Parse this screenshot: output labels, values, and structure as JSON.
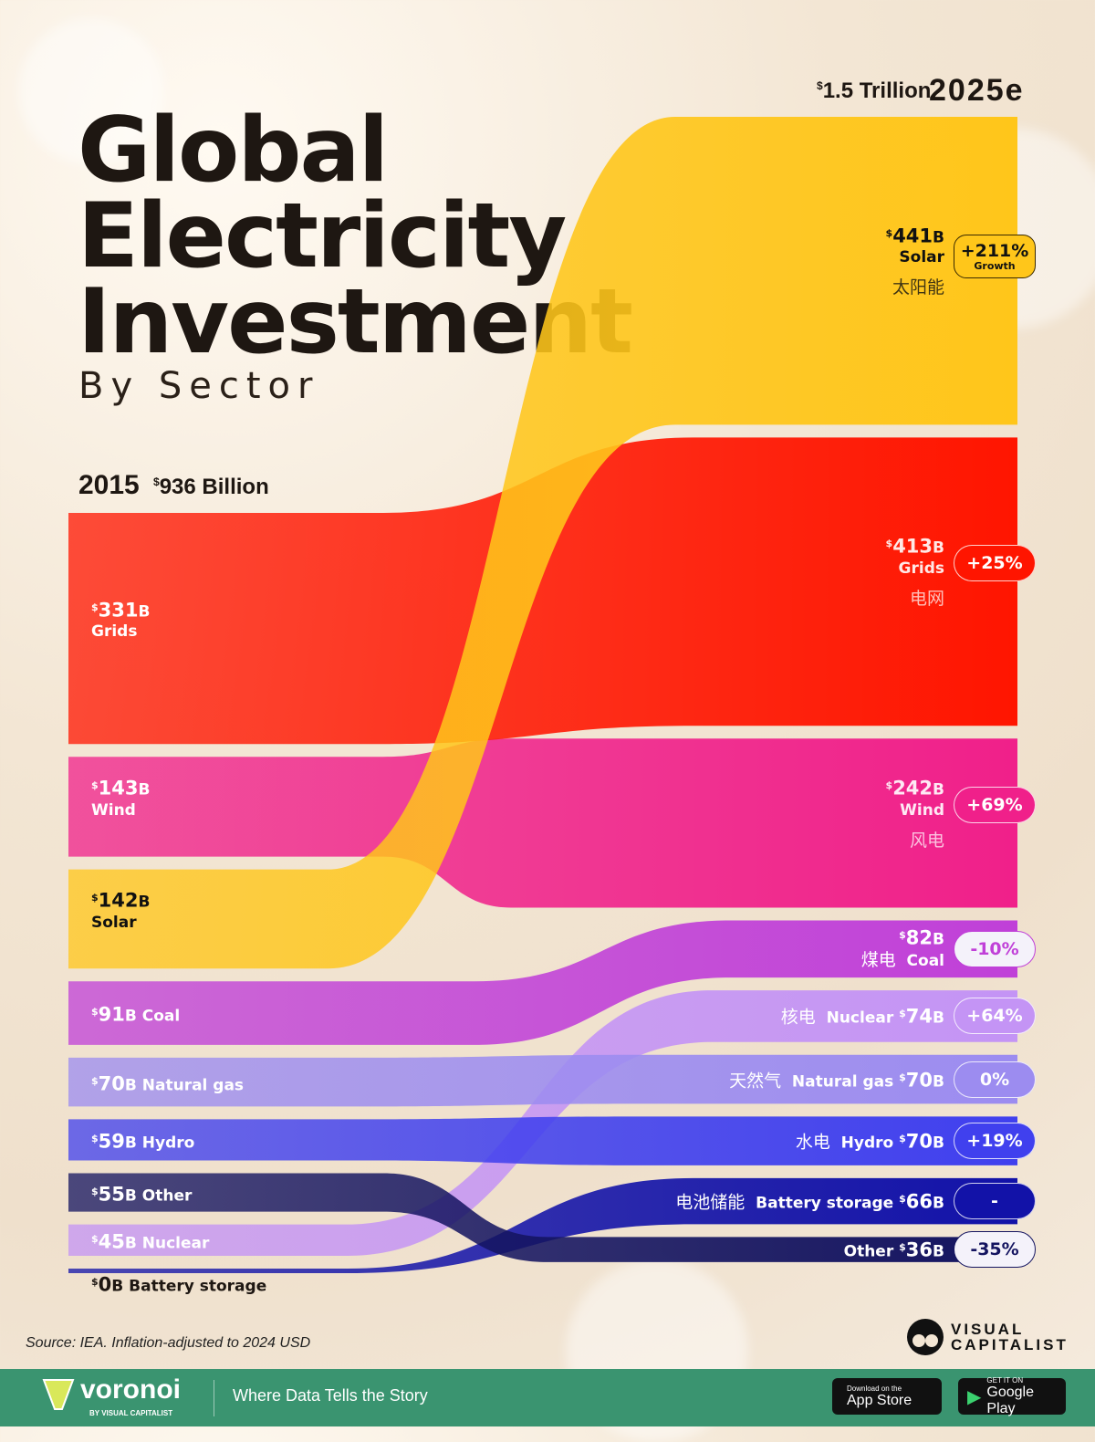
{
  "title_lines": [
    "Global",
    "Electricity",
    "Investment"
  ],
  "subtitle": "By Sector",
  "left_header": {
    "year": "2015",
    "total": "936 Billion",
    "currency": "$"
  },
  "right_header": {
    "year": "2025e",
    "total": "1.5 Trillion",
    "currency": "$"
  },
  "growth_word": "Growth",
  "chart_data": {
    "type": "sankey",
    "title": "Global Electricity Investment By Sector",
    "unit": "Billion USD",
    "x": [
      "2015",
      "2025e"
    ],
    "series": [
      {
        "name": "Grids",
        "cn": "电网",
        "v2015": 331,
        "v2025": 413,
        "change": "+25%",
        "color": "#ff1500"
      },
      {
        "name": "Wind",
        "cn": "风电",
        "v2015": 143,
        "v2025": 242,
        "change": "+69%",
        "color": "#f0208a"
      },
      {
        "name": "Solar",
        "cn": "太阳能",
        "v2015": 142,
        "v2025": 441,
        "change": "+211%",
        "color": "#ffc61a"
      },
      {
        "name": "Coal",
        "cn": "煤电",
        "v2015": 91,
        "v2025": 82,
        "change": "-10%",
        "color": "#c040d8"
      },
      {
        "name": "Natural gas",
        "cn": "天然气",
        "v2015": 70,
        "v2025": 70,
        "change": "0%",
        "color": "#9c8cf0"
      },
      {
        "name": "Hydro",
        "cn": "水电",
        "v2015": 59,
        "v2025": 70,
        "change": "+19%",
        "color": "#4040ee"
      },
      {
        "name": "Other",
        "cn": "",
        "v2015": 55,
        "v2025": 36,
        "change": "-35%",
        "color": "#141460"
      },
      {
        "name": "Nuclear",
        "cn": "核电",
        "v2015": 45,
        "v2025": 74,
        "change": "+64%",
        "color": "#c494f5"
      },
      {
        "name": "Battery storage",
        "cn": "电池储能",
        "v2015": 0,
        "v2025": 66,
        "change": "-",
        "color": "#1212a8"
      }
    ],
    "order_2015": [
      "Grids",
      "Wind",
      "Solar",
      "Coal",
      "Natural gas",
      "Hydro",
      "Other",
      "Nuclear",
      "Battery storage"
    ],
    "order_2025": [
      "Solar",
      "Grids",
      "Wind",
      "Coal",
      "Nuclear",
      "Natural gas",
      "Hydro",
      "Battery storage",
      "Other"
    ]
  },
  "source": "Source: IEA. Inflation-adjusted to 2024 USD",
  "logo": {
    "line1": "VISUAL",
    "line2": "CAPITALIST"
  },
  "footer": {
    "brand": "voronoi",
    "brand_sub": "BY VISUAL CAPITALIST",
    "tagline": "Where Data Tells the Story",
    "app_store_small": "Download on the",
    "app_store": "App Store",
    "play_small": "GET IT ON",
    "play": "Google Play"
  }
}
